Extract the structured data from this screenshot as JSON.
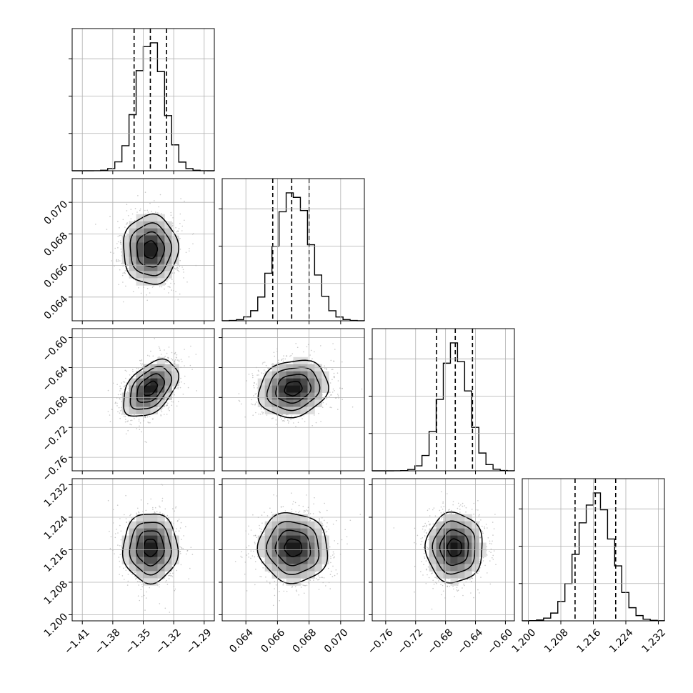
{
  "chart_data": {
    "type": "corner",
    "description_params": 4,
    "grid": true,
    "colors": {
      "hist": "#000000",
      "quantile": "#000000",
      "scatter": "#9a9a9a",
      "grid": "#b0b0b0"
    },
    "params": [
      {
        "range": [
          -1.42,
          -1.28
        ],
        "ticks": [
          -1.41,
          -1.38,
          -1.35,
          -1.32,
          -1.29
        ],
        "tick_labels": [
          "−1.41",
          "−1.38",
          "−1.35",
          "−1.32",
          "−1.29"
        ],
        "mean": -1.343,
        "sd": 0.0135,
        "quantiles": [
          -1.359,
          -1.343,
          -1.327
        ]
      },
      {
        "range": [
          0.0625,
          0.0715
        ],
        "ticks": [
          0.064,
          0.066,
          0.068,
          0.07
        ],
        "tick_labels": [
          "0.064",
          "0.066",
          "0.068",
          "0.070"
        ],
        "mean": 0.067,
        "sd": 0.0011,
        "quantiles": [
          0.0657,
          0.0669,
          0.068
        ]
      },
      {
        "range": [
          -0.778,
          -0.588
        ],
        "ticks": [
          -0.76,
          -0.72,
          -0.68,
          -0.64,
          -0.6
        ],
        "tick_labels": [
          "−0.76",
          "−0.72",
          "−0.68",
          "−0.64",
          "−0.60"
        ],
        "mean": -0.668,
        "sd": 0.019,
        "quantiles": [
          -0.692,
          -0.667,
          -0.644
        ]
      },
      {
        "range": [
          1.1985,
          1.2335
        ],
        "ticks": [
          1.2,
          1.208,
          1.216,
          1.224,
          1.232
        ],
        "tick_labels": [
          "1.200",
          "1.208",
          "1.216",
          "1.224",
          "1.232"
        ],
        "mean": 1.2165,
        "sd": 0.0043,
        "quantiles": [
          1.2115,
          1.2165,
          1.2215
        ]
      }
    ],
    "correlations": [
      [
        1.0,
        0.0,
        0.0,
        0.0
      ],
      [
        0.0,
        1.0,
        0.0,
        0.0
      ],
      [
        0.45,
        0.15,
        1.0,
        0.0
      ],
      [
        0.0,
        -0.05,
        0.0,
        1.0
      ]
    ],
    "contour_levels_sigma": [
      0.5,
      1.0,
      1.5,
      2.0
    ],
    "hist_bins": 20
  }
}
